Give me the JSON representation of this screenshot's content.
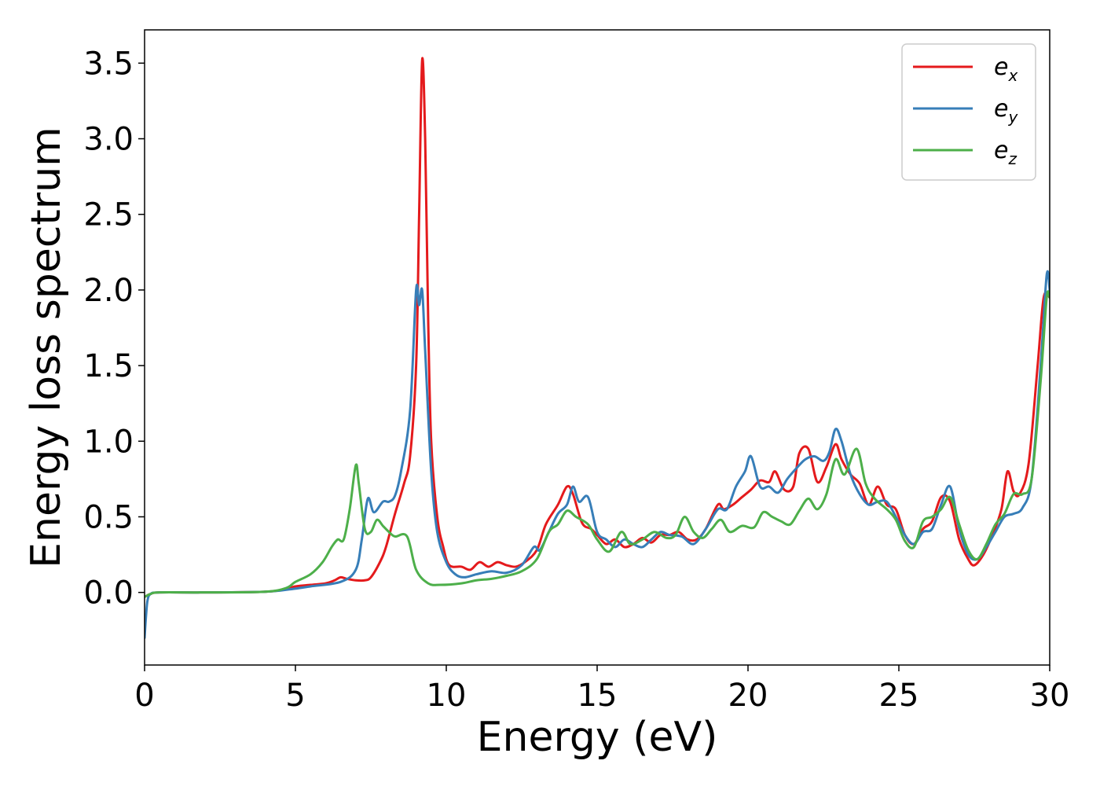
{
  "chart_data": {
    "type": "line",
    "title": "",
    "xlabel": "Energy (eV)",
    "ylabel": "Energy loss spectrum",
    "xlim": [
      0,
      30
    ],
    "ylim": [
      -0.48,
      3.72
    ],
    "xticks": [
      0,
      5,
      10,
      15,
      20,
      25,
      30
    ],
    "xtick_labels": [
      "0",
      "5",
      "10",
      "15",
      "20",
      "25",
      "30"
    ],
    "yticks": [
      0.0,
      0.5,
      1.0,
      1.5,
      2.0,
      2.5,
      3.0,
      3.5
    ],
    "ytick_labels": [
      "0.0",
      "0.5",
      "1.0",
      "1.5",
      "2.0",
      "2.5",
      "3.0",
      "3.5"
    ],
    "grid": false,
    "legend_position": "top-right",
    "series": [
      {
        "name": "e",
        "subscript": "x",
        "color": "#e41a1c",
        "points": [
          [
            0,
            -0.03
          ],
          [
            0.2,
            -0.01
          ],
          [
            0.5,
            0.0
          ],
          [
            2,
            0.0
          ],
          [
            4,
            0.005
          ],
          [
            4.6,
            0.02
          ],
          [
            5,
            0.04
          ],
          [
            5.5,
            0.05
          ],
          [
            6,
            0.06
          ],
          [
            6.3,
            0.08
          ],
          [
            6.5,
            0.1
          ],
          [
            6.7,
            0.09
          ],
          [
            7,
            0.08
          ],
          [
            7.3,
            0.08
          ],
          [
            7.5,
            0.1
          ],
          [
            7.8,
            0.2
          ],
          [
            8,
            0.3
          ],
          [
            8.3,
            0.52
          ],
          [
            8.6,
            0.72
          ],
          [
            8.8,
            0.9
          ],
          [
            9.0,
            1.5
          ],
          [
            9.1,
            2.5
          ],
          [
            9.2,
            3.52
          ],
          [
            9.3,
            3.0
          ],
          [
            9.4,
            1.8
          ],
          [
            9.5,
            1.0
          ],
          [
            9.7,
            0.5
          ],
          [
            9.9,
            0.3
          ],
          [
            10.1,
            0.18
          ],
          [
            10.5,
            0.17
          ],
          [
            10.8,
            0.15
          ],
          [
            11.1,
            0.2
          ],
          [
            11.4,
            0.17
          ],
          [
            11.7,
            0.2
          ],
          [
            12.0,
            0.18
          ],
          [
            12.3,
            0.17
          ],
          [
            12.6,
            0.2
          ],
          [
            13.0,
            0.28
          ],
          [
            13.3,
            0.45
          ],
          [
            13.7,
            0.58
          ],
          [
            14.0,
            0.7
          ],
          [
            14.2,
            0.65
          ],
          [
            14.5,
            0.46
          ],
          [
            14.8,
            0.42
          ],
          [
            15.0,
            0.38
          ],
          [
            15.3,
            0.32
          ],
          [
            15.6,
            0.35
          ],
          [
            15.9,
            0.3
          ],
          [
            16.2,
            0.32
          ],
          [
            16.5,
            0.36
          ],
          [
            16.8,
            0.33
          ],
          [
            17.1,
            0.38
          ],
          [
            17.4,
            0.38
          ],
          [
            17.7,
            0.4
          ],
          [
            18.0,
            0.35
          ],
          [
            18.3,
            0.35
          ],
          [
            18.6,
            0.42
          ],
          [
            19.0,
            0.58
          ],
          [
            19.2,
            0.55
          ],
          [
            19.5,
            0.58
          ],
          [
            19.8,
            0.63
          ],
          [
            20.1,
            0.68
          ],
          [
            20.4,
            0.74
          ],
          [
            20.7,
            0.73
          ],
          [
            20.9,
            0.8
          ],
          [
            21.2,
            0.68
          ],
          [
            21.5,
            0.7
          ],
          [
            21.7,
            0.92
          ],
          [
            22.0,
            0.95
          ],
          [
            22.3,
            0.73
          ],
          [
            22.6,
            0.83
          ],
          [
            22.9,
            0.98
          ],
          [
            23.1,
            0.88
          ],
          [
            23.4,
            0.78
          ],
          [
            23.7,
            0.72
          ],
          [
            24.0,
            0.58
          ],
          [
            24.3,
            0.7
          ],
          [
            24.6,
            0.58
          ],
          [
            24.9,
            0.55
          ],
          [
            25.2,
            0.38
          ],
          [
            25.5,
            0.32
          ],
          [
            25.8,
            0.42
          ],
          [
            26.1,
            0.47
          ],
          [
            26.4,
            0.63
          ],
          [
            26.7,
            0.6
          ],
          [
            27.0,
            0.35
          ],
          [
            27.3,
            0.22
          ],
          [
            27.5,
            0.18
          ],
          [
            27.8,
            0.25
          ],
          [
            28.1,
            0.38
          ],
          [
            28.4,
            0.55
          ],
          [
            28.6,
            0.8
          ],
          [
            28.8,
            0.67
          ],
          [
            29.0,
            0.65
          ],
          [
            29.3,
            0.85
          ],
          [
            29.6,
            1.5
          ],
          [
            29.8,
            1.95
          ],
          [
            30.0,
            1.95
          ]
        ]
      },
      {
        "name": "e",
        "subscript": "y",
        "color": "#377eb8",
        "points": [
          [
            0,
            -0.3
          ],
          [
            0.05,
            -0.15
          ],
          [
            0.1,
            -0.05
          ],
          [
            0.2,
            -0.01
          ],
          [
            0.5,
            0.0
          ],
          [
            2,
            0.0
          ],
          [
            4,
            0.005
          ],
          [
            4.8,
            0.02
          ],
          [
            5.5,
            0.04
          ],
          [
            6.5,
            0.07
          ],
          [
            7.0,
            0.15
          ],
          [
            7.2,
            0.35
          ],
          [
            7.4,
            0.62
          ],
          [
            7.6,
            0.53
          ],
          [
            7.9,
            0.6
          ],
          [
            8.1,
            0.6
          ],
          [
            8.3,
            0.64
          ],
          [
            8.5,
            0.8
          ],
          [
            8.8,
            1.2
          ],
          [
            9.0,
            2.0
          ],
          [
            9.1,
            1.9
          ],
          [
            9.2,
            2.0
          ],
          [
            9.3,
            1.6
          ],
          [
            9.5,
            0.8
          ],
          [
            9.7,
            0.4
          ],
          [
            10.0,
            0.2
          ],
          [
            10.3,
            0.12
          ],
          [
            10.6,
            0.1
          ],
          [
            11.0,
            0.12
          ],
          [
            11.5,
            0.14
          ],
          [
            12.0,
            0.13
          ],
          [
            12.5,
            0.18
          ],
          [
            12.9,
            0.3
          ],
          [
            13.1,
            0.28
          ],
          [
            13.4,
            0.4
          ],
          [
            13.7,
            0.52
          ],
          [
            14.0,
            0.58
          ],
          [
            14.2,
            0.7
          ],
          [
            14.4,
            0.6
          ],
          [
            14.7,
            0.63
          ],
          [
            15.0,
            0.4
          ],
          [
            15.3,
            0.35
          ],
          [
            15.6,
            0.3
          ],
          [
            15.9,
            0.35
          ],
          [
            16.2,
            0.32
          ],
          [
            16.5,
            0.3
          ],
          [
            16.8,
            0.35
          ],
          [
            17.1,
            0.4
          ],
          [
            17.4,
            0.38
          ],
          [
            17.8,
            0.37
          ],
          [
            18.2,
            0.32
          ],
          [
            18.6,
            0.42
          ],
          [
            19.0,
            0.55
          ],
          [
            19.3,
            0.55
          ],
          [
            19.6,
            0.7
          ],
          [
            19.9,
            0.8
          ],
          [
            20.1,
            0.9
          ],
          [
            20.4,
            0.7
          ],
          [
            20.7,
            0.7
          ],
          [
            21.0,
            0.66
          ],
          [
            21.3,
            0.75
          ],
          [
            21.6,
            0.82
          ],
          [
            21.9,
            0.88
          ],
          [
            22.2,
            0.9
          ],
          [
            22.5,
            0.87
          ],
          [
            22.7,
            0.93
          ],
          [
            22.9,
            1.08
          ],
          [
            23.1,
            1.0
          ],
          [
            23.4,
            0.78
          ],
          [
            23.7,
            0.65
          ],
          [
            24.0,
            0.58
          ],
          [
            24.3,
            0.6
          ],
          [
            24.6,
            0.6
          ],
          [
            24.9,
            0.5
          ],
          [
            25.2,
            0.38
          ],
          [
            25.5,
            0.32
          ],
          [
            25.8,
            0.4
          ],
          [
            26.1,
            0.42
          ],
          [
            26.4,
            0.58
          ],
          [
            26.7,
            0.7
          ],
          [
            27.0,
            0.42
          ],
          [
            27.3,
            0.25
          ],
          [
            27.6,
            0.22
          ],
          [
            27.9,
            0.3
          ],
          [
            28.2,
            0.4
          ],
          [
            28.5,
            0.5
          ],
          [
            28.8,
            0.52
          ],
          [
            29.1,
            0.56
          ],
          [
            29.4,
            0.75
          ],
          [
            29.7,
            1.5
          ],
          [
            29.9,
            2.1
          ],
          [
            30.0,
            2.0
          ]
        ]
      },
      {
        "name": "e",
        "subscript": "z",
        "color": "#4daf4a",
        "points": [
          [
            0,
            -0.03
          ],
          [
            0.2,
            -0.01
          ],
          [
            0.5,
            0.0
          ],
          [
            2,
            0.0
          ],
          [
            4,
            0.005
          ],
          [
            4.7,
            0.03
          ],
          [
            5.0,
            0.07
          ],
          [
            5.5,
            0.12
          ],
          [
            5.9,
            0.2
          ],
          [
            6.2,
            0.3
          ],
          [
            6.4,
            0.35
          ],
          [
            6.6,
            0.35
          ],
          [
            6.8,
            0.55
          ],
          [
            7.0,
            0.84
          ],
          [
            7.1,
            0.72
          ],
          [
            7.3,
            0.42
          ],
          [
            7.5,
            0.4
          ],
          [
            7.7,
            0.48
          ],
          [
            7.9,
            0.44
          ],
          [
            8.1,
            0.4
          ],
          [
            8.3,
            0.37
          ],
          [
            8.7,
            0.37
          ],
          [
            9.0,
            0.15
          ],
          [
            9.4,
            0.06
          ],
          [
            9.8,
            0.05
          ],
          [
            10.5,
            0.06
          ],
          [
            11.0,
            0.08
          ],
          [
            11.5,
            0.09
          ],
          [
            12.0,
            0.11
          ],
          [
            12.5,
            0.14
          ],
          [
            13.0,
            0.22
          ],
          [
            13.4,
            0.4
          ],
          [
            13.7,
            0.45
          ],
          [
            14.0,
            0.54
          ],
          [
            14.3,
            0.5
          ],
          [
            14.7,
            0.45
          ],
          [
            15.0,
            0.35
          ],
          [
            15.4,
            0.27
          ],
          [
            15.8,
            0.4
          ],
          [
            16.1,
            0.32
          ],
          [
            16.5,
            0.35
          ],
          [
            16.9,
            0.4
          ],
          [
            17.3,
            0.36
          ],
          [
            17.6,
            0.38
          ],
          [
            17.9,
            0.5
          ],
          [
            18.2,
            0.4
          ],
          [
            18.5,
            0.36
          ],
          [
            18.8,
            0.42
          ],
          [
            19.1,
            0.48
          ],
          [
            19.4,
            0.4
          ],
          [
            19.8,
            0.44
          ],
          [
            20.2,
            0.43
          ],
          [
            20.5,
            0.53
          ],
          [
            20.8,
            0.5
          ],
          [
            21.1,
            0.47
          ],
          [
            21.4,
            0.45
          ],
          [
            21.7,
            0.54
          ],
          [
            22.0,
            0.62
          ],
          [
            22.3,
            0.55
          ],
          [
            22.6,
            0.65
          ],
          [
            22.9,
            0.88
          ],
          [
            23.2,
            0.78
          ],
          [
            23.6,
            0.95
          ],
          [
            23.9,
            0.72
          ],
          [
            24.2,
            0.62
          ],
          [
            24.6,
            0.55
          ],
          [
            24.9,
            0.48
          ],
          [
            25.2,
            0.34
          ],
          [
            25.5,
            0.3
          ],
          [
            25.8,
            0.47
          ],
          [
            26.1,
            0.5
          ],
          [
            26.4,
            0.55
          ],
          [
            26.7,
            0.63
          ],
          [
            27.0,
            0.45
          ],
          [
            27.3,
            0.28
          ],
          [
            27.6,
            0.22
          ],
          [
            27.9,
            0.32
          ],
          [
            28.2,
            0.45
          ],
          [
            28.5,
            0.52
          ],
          [
            28.8,
            0.65
          ],
          [
            29.1,
            0.65
          ],
          [
            29.4,
            0.75
          ],
          [
            29.7,
            1.4
          ],
          [
            29.9,
            1.95
          ],
          [
            30.0,
            1.95
          ]
        ]
      }
    ]
  }
}
